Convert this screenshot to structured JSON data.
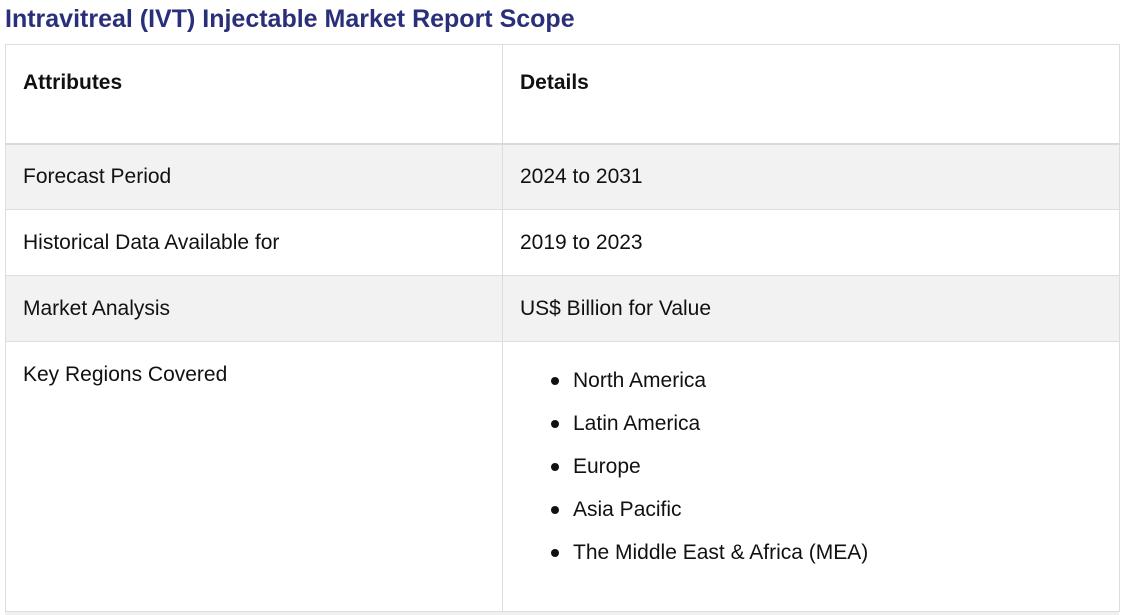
{
  "title": "Intravitreal (IVT) Injectable Market Report Scope",
  "table": {
    "headers": [
      "Attributes",
      "Details"
    ],
    "rows": [
      {
        "attribute": "Forecast Period",
        "detail": "2024 to 2031"
      },
      {
        "attribute": "Historical Data Available for",
        "detail": "2019 to 2023"
      },
      {
        "attribute": "Market Analysis",
        "detail": "US$ Billion for Value"
      }
    ],
    "regions": {
      "attribute": "Key Regions Covered",
      "items": [
        "North America",
        "Latin America",
        "Europe",
        "Asia Pacific",
        "The Middle East & Africa (MEA)"
      ]
    }
  }
}
